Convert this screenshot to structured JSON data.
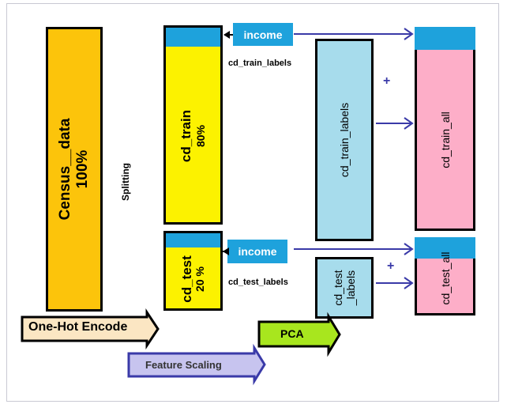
{
  "blocks": {
    "census_data": {
      "name": "Census__data",
      "percent": "100%"
    },
    "splitting": "Splitting",
    "cd_train": {
      "name": "cd_train",
      "percent": "80%"
    },
    "cd_test": {
      "name": "cd_test",
      "percent": "20 %"
    },
    "income_top": "income",
    "income_bottom": "income",
    "cd_train_labels_caption": "cd_train_labels",
    "cd_test_labels_caption": "cd_test_labels",
    "cd_train_labels_box": "cd_train_labels",
    "cd_test_labels_box": {
      "line1": "cd_test",
      "line2": "_labels"
    },
    "cd_train_all": "cd_train_all",
    "cd_test_all": "cd_test_all",
    "plus_top": "+",
    "plus_bottom": "+"
  },
  "steps": {
    "one_hot": "One-Hot Encode",
    "pca": "PCA",
    "feature_scaling": "Feature Scaling"
  },
  "colors": {
    "census": "#fcc40b",
    "train": "#fcf200",
    "labels": "#a7dcec",
    "all": "#fdaec8",
    "tag": "#1ea2dc",
    "arrow": "#3a3aa8",
    "one_hot": "#fbe6c3",
    "pca": "#a8e61e",
    "feature_scaling": "#c7c4ef"
  }
}
